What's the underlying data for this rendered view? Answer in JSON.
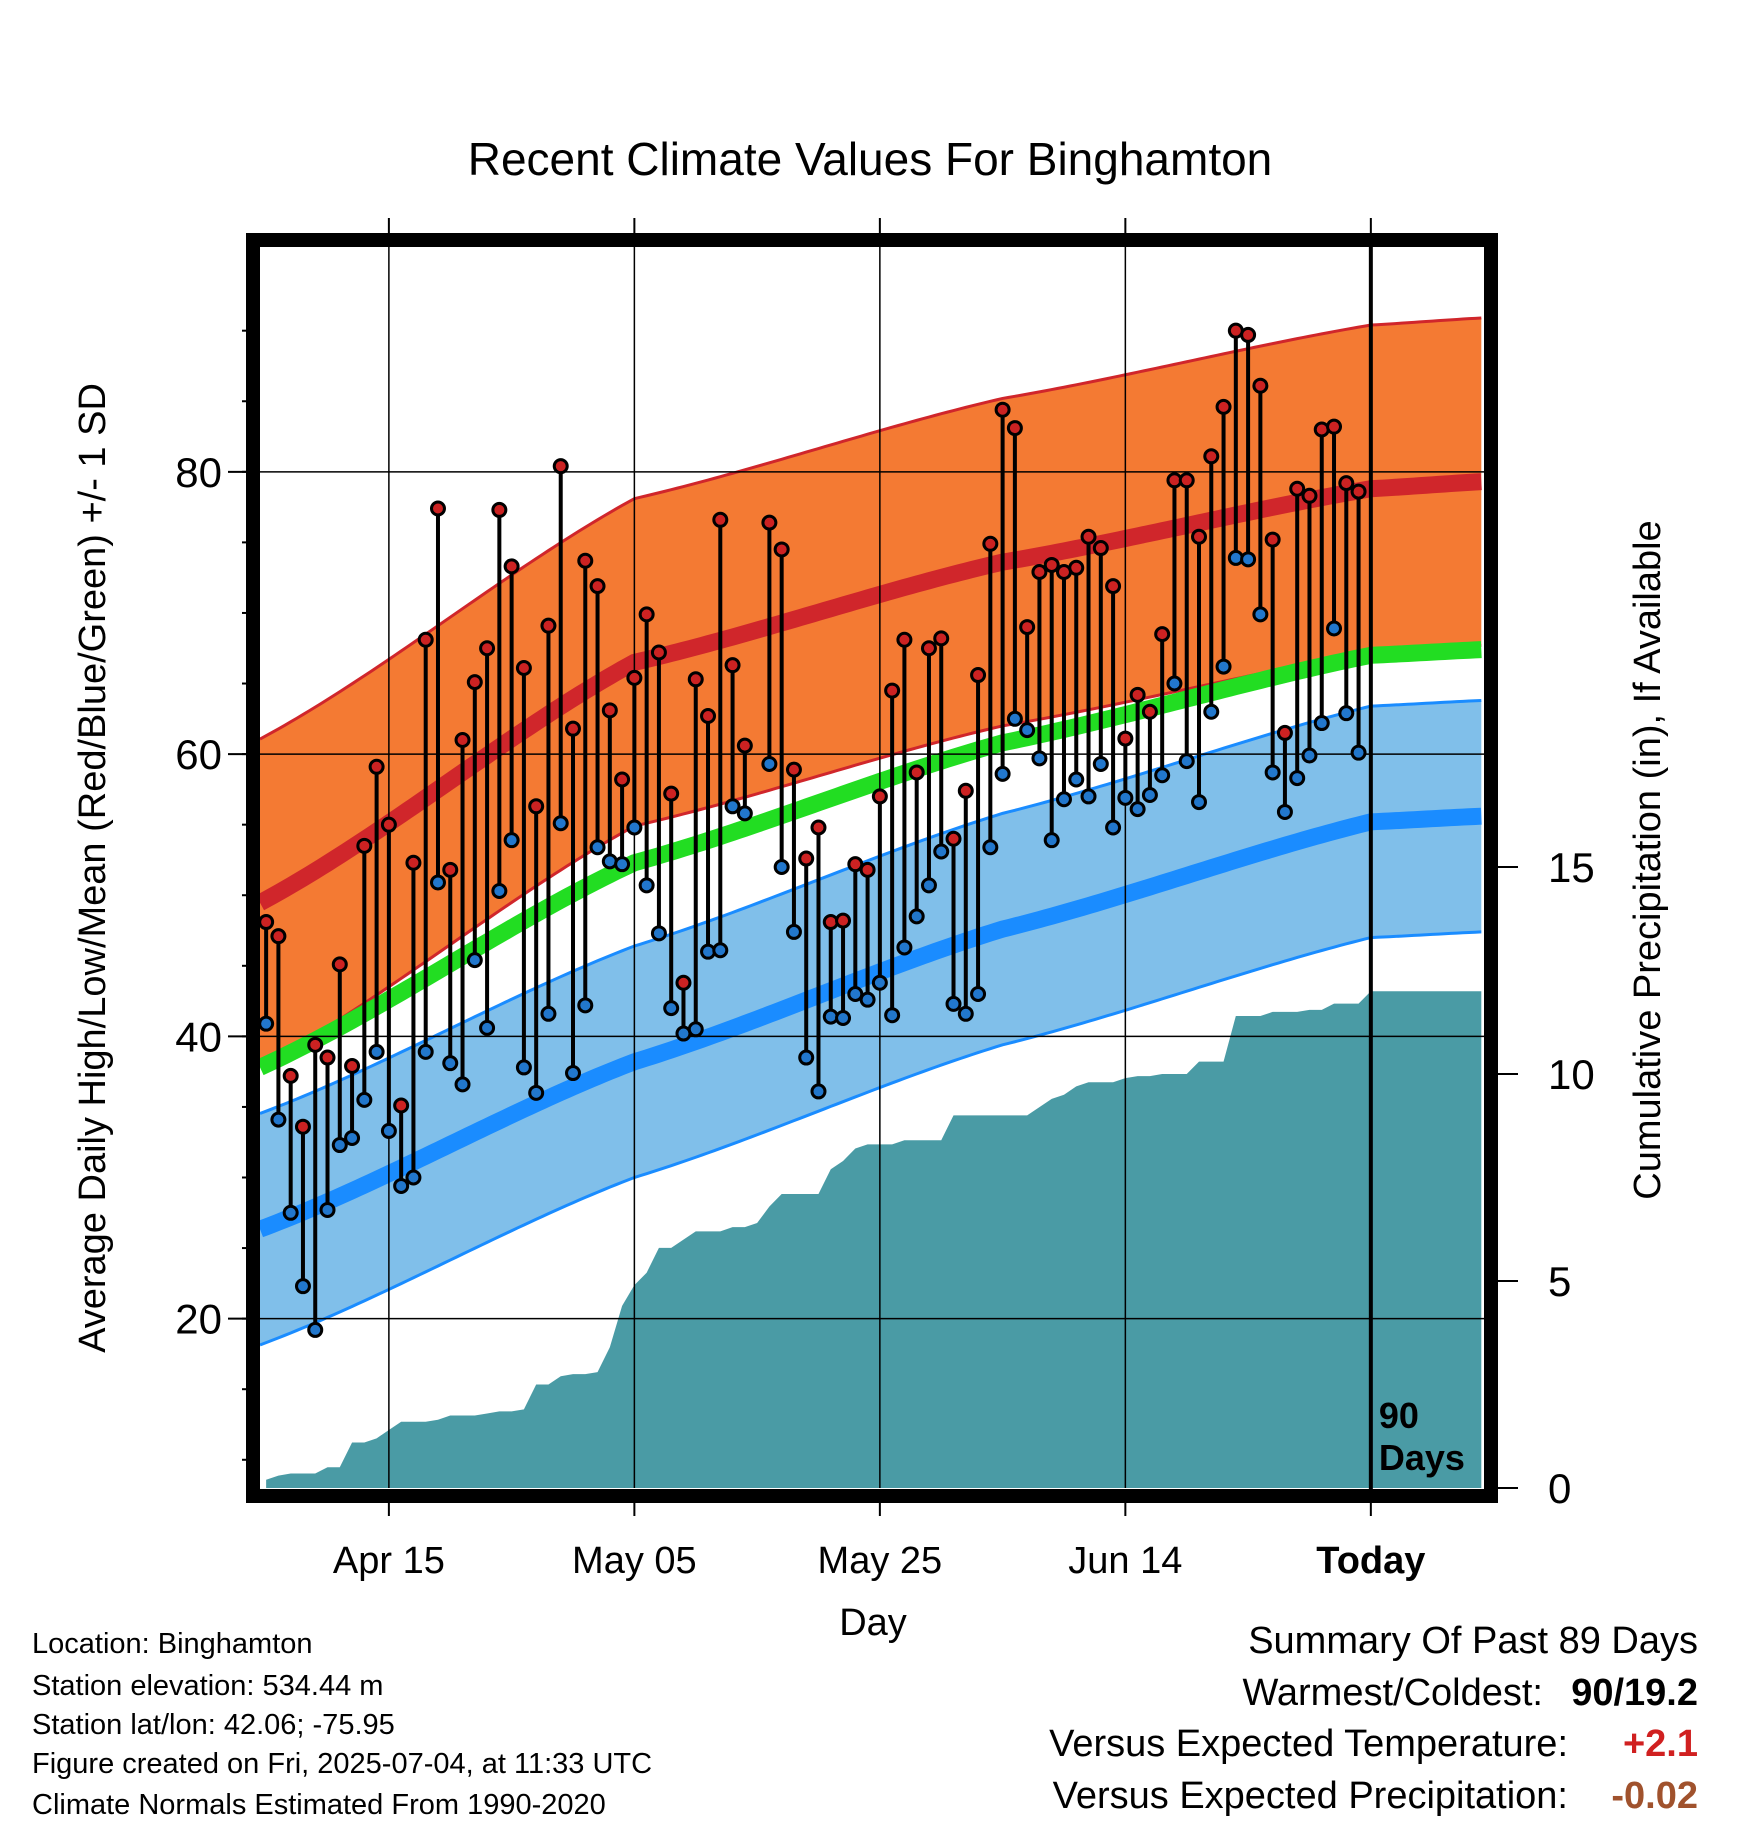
{
  "chart_data": {
    "type": "line",
    "title": "Recent Climate Values For Binghamton",
    "xlabel": "Day",
    "ylabel": "Average Daily High/Low/Mean (Red/Blue/Green) +/- 1 SD",
    "y2label": "Cumulative Precipitation (in), If Available",
    "ylim": [
      8,
      96
    ],
    "y2lim": [
      0,
      30
    ],
    "y_ticks": [
      "20",
      "40",
      "60",
      "80"
    ],
    "y2_ticks": [
      "0",
      "5",
      "10",
      "15"
    ],
    "x_ticks": [
      "Apr 15",
      "May 05",
      "May 25",
      "Jun 14",
      "Today"
    ],
    "x_tick_days": [
      10,
      30,
      50,
      70,
      90
    ],
    "xlim": [
      -0.5,
      99.3
    ],
    "today_marker": {
      "day": 90,
      "label_line1": "90",
      "label_line2": "Days"
    },
    "normal_high": {
      "days": [
        0,
        30,
        60,
        90,
        99
      ],
      "mean": [
        49.7,
        66.5,
        73.6,
        78.8,
        79.3
      ],
      "sd": 11.6
    },
    "normal_low": {
      "days": [
        0,
        30,
        60,
        90,
        99
      ],
      "mean": [
        26.5,
        38.2,
        47.6,
        55.2,
        55.6
      ],
      "sd": 8.2
    },
    "normal_mean": {
      "days": [
        0,
        30,
        60,
        90,
        99
      ],
      "values": [
        38.0,
        52.3,
        60.8,
        67.0,
        67.4
      ]
    },
    "observed_high": [
      48.1,
      47.1,
      37.2,
      33.6,
      39.4,
      38.5,
      45.1,
      37.9,
      53.5,
      59.1,
      55.0,
      35.1,
      52.3,
      68.1,
      77.4,
      51.8,
      61.0,
      65.1,
      67.5,
      77.3,
      73.3,
      66.1,
      56.3,
      69.1,
      80.4,
      61.8,
      73.7,
      71.9,
      63.1,
      58.2,
      65.4,
      69.9,
      67.2,
      57.2,
      43.8,
      65.3,
      62.7,
      76.6,
      66.3,
      60.6,
      null,
      76.4,
      74.5,
      58.9,
      52.6,
      54.8,
      48.1,
      48.2,
      52.2,
      51.8,
      57.0,
      64.5,
      68.1,
      58.7,
      67.5,
      68.2,
      54.0,
      57.4,
      65.6,
      74.9,
      84.4,
      83.1,
      69.0,
      72.9,
      73.4,
      72.9,
      73.2,
      75.4,
      74.6,
      71.9,
      61.1,
      64.2,
      63.0,
      68.5,
      79.4,
      79.4,
      75.4,
      81.1,
      84.6,
      90.0,
      89.7,
      86.1,
      75.2,
      61.5,
      78.8,
      78.3,
      83.0,
      83.2,
      79.2,
      78.6
    ],
    "observed_low": [
      40.9,
      34.1,
      27.5,
      22.3,
      19.2,
      27.7,
      32.3,
      32.8,
      35.5,
      38.9,
      33.3,
      29.4,
      30.0,
      38.9,
      50.9,
      38.1,
      36.6,
      45.4,
      40.6,
      50.3,
      53.9,
      37.8,
      36.0,
      41.6,
      55.1,
      37.4,
      42.2,
      53.4,
      52.4,
      52.2,
      54.8,
      50.7,
      47.3,
      42.0,
      40.2,
      40.5,
      46.0,
      46.1,
      56.3,
      55.8,
      null,
      59.3,
      52.0,
      47.4,
      38.5,
      36.1,
      41.4,
      41.3,
      43.0,
      42.6,
      43.8,
      41.5,
      46.3,
      48.5,
      50.7,
      53.1,
      42.3,
      41.6,
      43.0,
      53.4,
      58.6,
      62.5,
      61.7,
      59.7,
      53.9,
      56.8,
      58.2,
      57.0,
      59.3,
      54.8,
      56.9,
      56.1,
      57.1,
      58.5,
      65.0,
      59.5,
      56.6,
      63.0,
      66.2,
      73.9,
      73.8,
      69.9,
      58.7,
      55.9,
      58.3,
      59.9,
      62.2,
      68.9,
      62.9,
      60.1
    ],
    "precipitation_cumulative": [
      [
        0,
        0.2
      ],
      [
        1,
        0.3
      ],
      [
        2,
        0.35
      ],
      [
        3,
        0.35
      ],
      [
        4,
        0.35
      ],
      [
        5,
        0.5
      ],
      [
        6,
        0.5
      ],
      [
        7,
        1.1
      ],
      [
        8,
        1.1
      ],
      [
        9,
        1.2
      ],
      [
        10,
        1.4
      ],
      [
        11,
        1.6
      ],
      [
        12,
        1.6
      ],
      [
        13,
        1.6
      ],
      [
        14,
        1.65
      ],
      [
        15,
        1.75
      ],
      [
        16,
        1.75
      ],
      [
        17,
        1.75
      ],
      [
        18,
        1.8
      ],
      [
        19,
        1.85
      ],
      [
        20,
        1.85
      ],
      [
        21,
        1.9
      ],
      [
        22,
        2.5
      ],
      [
        23,
        2.5
      ],
      [
        24,
        2.7
      ],
      [
        25,
        2.75
      ],
      [
        26,
        2.75
      ],
      [
        27,
        2.8
      ],
      [
        28,
        3.4
      ],
      [
        29,
        4.4
      ],
      [
        30,
        4.9
      ],
      [
        31,
        5.2
      ],
      [
        32,
        5.8
      ],
      [
        33,
        5.8
      ],
      [
        34,
        6.0
      ],
      [
        35,
        6.2
      ],
      [
        36,
        6.2
      ],
      [
        37,
        6.2
      ],
      [
        38,
        6.3
      ],
      [
        39,
        6.3
      ],
      [
        40,
        6.4
      ],
      [
        41,
        6.8
      ],
      [
        42,
        7.1
      ],
      [
        43,
        7.1
      ],
      [
        44,
        7.1
      ],
      [
        45,
        7.1
      ],
      [
        46,
        7.7
      ],
      [
        47,
        7.9
      ],
      [
        48,
        8.2
      ],
      [
        49,
        8.3
      ],
      [
        50,
        8.3
      ],
      [
        51,
        8.3
      ],
      [
        52,
        8.4
      ],
      [
        53,
        8.4
      ],
      [
        54,
        8.4
      ],
      [
        55,
        8.4
      ],
      [
        56,
        9.0
      ],
      [
        57,
        9.0
      ],
      [
        58,
        9.0
      ],
      [
        59,
        9.0
      ],
      [
        60,
        9.0
      ],
      [
        61,
        9.0
      ],
      [
        62,
        9.0
      ],
      [
        63,
        9.2
      ],
      [
        64,
        9.4
      ],
      [
        65,
        9.5
      ],
      [
        66,
        9.7
      ],
      [
        67,
        9.8
      ],
      [
        68,
        9.8
      ],
      [
        69,
        9.8
      ],
      [
        70,
        9.9
      ],
      [
        71,
        9.95
      ],
      [
        72,
        9.95
      ],
      [
        73,
        10.0
      ],
      [
        74,
        10.0
      ],
      [
        75,
        10.0
      ],
      [
        76,
        10.3
      ],
      [
        77,
        10.3
      ],
      [
        78,
        10.3
      ],
      [
        79,
        11.4
      ],
      [
        80,
        11.4
      ],
      [
        81,
        11.4
      ],
      [
        82,
        11.5
      ],
      [
        83,
        11.5
      ],
      [
        84,
        11.5
      ],
      [
        85,
        11.55
      ],
      [
        86,
        11.55
      ],
      [
        87,
        11.7
      ],
      [
        88,
        11.7
      ],
      [
        89,
        11.7
      ],
      [
        90,
        12.0
      ],
      [
        99,
        12.0
      ]
    ],
    "colors": {
      "high_band": "#f47a33",
      "high_line": "#d0262b",
      "low_band": "#80bfea",
      "low_line": "#1a8cff",
      "mean_line": "#22dd22",
      "precip": "#4a9ba5",
      "high_marker": "#cc2222",
      "low_marker": "#2277cc"
    },
    "grid": true
  },
  "info": {
    "location": "Location: Binghamton",
    "elevation": "Station elevation: 534.44 m",
    "latlon": "Station lat/lon: 42.06; -75.95",
    "created": "Figure created on Fri, 2025-07-04, at 11:33 UTC",
    "normals": "Climate Normals Estimated From 1990-2020"
  },
  "summary": {
    "title": "Summary Of Past 89 Days",
    "warmest_label": "Warmest/Coldest:",
    "warmest_value": "90/19.2",
    "temp_label": "Versus Expected Temperature:",
    "temp_value": "+2.1",
    "temp_color": "#d02020",
    "precip_label": "Versus Expected Precipitation:",
    "precip_value": "-0.02",
    "precip_color": "#a0522d"
  }
}
